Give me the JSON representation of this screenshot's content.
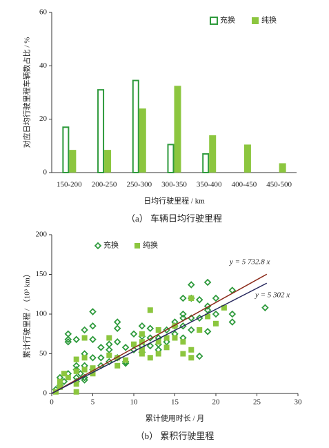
{
  "chart_data": [
    {
      "type": "bar",
      "categories": [
        "150-200",
        "200-250",
        "250-300",
        "300-350",
        "350-400",
        "400-450",
        "450-500"
      ],
      "series": [
        {
          "name": "充换",
          "color": "#2e9a3c",
          "style": "hollow",
          "values": [
            17,
            31,
            34.5,
            10.5,
            7,
            null,
            null
          ]
        },
        {
          "name": "纯换",
          "color": "#8cc63f",
          "style": "filled",
          "values": [
            8.5,
            8.5,
            24,
            32.5,
            14,
            10.5,
            3.5
          ]
        }
      ],
      "ylim": [
        0,
        60
      ],
      "yticks": [
        0,
        20,
        40,
        60
      ],
      "ylabel": "对应日均行驶里程车辆数占比 / %",
      "xlabel": "日均行驶里程 / km",
      "caption": "（a） 车辆日均行驶里程",
      "legend": "upper right",
      "grid": false
    },
    {
      "type": "scatter",
      "series": [
        {
          "name": "充换",
          "color": "#2e9a3c",
          "marker": "diamond",
          "x": [
            0.5,
            1,
            1,
            1.5,
            2,
            2,
            2,
            2,
            3,
            3,
            3,
            3,
            3,
            3.5,
            4,
            4,
            4,
            4,
            4,
            5,
            5,
            5,
            5,
            5,
            6,
            6,
            6,
            7,
            7,
            7,
            8,
            8,
            8,
            8,
            9,
            9,
            9,
            10,
            10,
            11,
            11,
            11,
            11,
            12,
            12,
            12,
            13,
            13,
            14,
            14,
            15,
            15,
            16,
            16,
            16,
            16,
            17,
            17,
            17,
            17,
            18,
            18,
            18,
            19,
            19,
            19,
            19,
            20,
            20,
            22,
            22,
            22,
            26,
            15,
            16,
            13
          ],
          "y": [
            5,
            10,
            20,
            15,
            25,
            68,
            75,
            65,
            68,
            30,
            35,
            20,
            15,
            25,
            80,
            50,
            35,
            20,
            17,
            103,
            85,
            68,
            45,
            30,
            58,
            45,
            35,
            62,
            55,
            40,
            90,
            82,
            65,
            45,
            58,
            40,
            38,
            75,
            55,
            85,
            72,
            60,
            52,
            82,
            70,
            60,
            70,
            62,
            80,
            65,
            85,
            75,
            120,
            100,
            95,
            85,
            137,
            120,
            95,
            80,
            118,
            95,
            47,
            140,
            110,
            105,
            78,
            120,
            100,
            130,
            100,
            90,
            108,
            90,
            70,
            55
          ]
        },
        {
          "name": "纯换",
          "color": "#8cc63f",
          "marker": "square",
          "x": [
            0.5,
            1,
            1,
            1.5,
            2,
            3,
            3,
            3,
            3,
            4,
            4,
            4,
            5,
            5,
            7,
            7,
            8,
            8,
            9,
            11,
            11,
            11,
            12,
            12,
            13,
            13,
            14,
            15,
            15,
            16,
            16,
            17,
            17,
            18,
            19,
            20,
            21,
            13,
            11,
            10,
            14,
            17
          ],
          "y": [
            2,
            8,
            15,
            25,
            20,
            2,
            12,
            28,
            43,
            70,
            45,
            30,
            25,
            32,
            70,
            48,
            35,
            45,
            42,
            75,
            65,
            55,
            105,
            45,
            80,
            50,
            70,
            85,
            70,
            65,
            50,
            120,
            45,
            80,
            97,
            88,
            108,
            65,
            50,
            62,
            58,
            55
          ]
        }
      ],
      "fit_lines": [
        {
          "label": "y = 5 732.8 x",
          "slope": 5.7328,
          "xrange": [
            0,
            26.2
          ],
          "color": "#8b2a1a"
        },
        {
          "label": "y = 5 302 x",
          "slope": 5.302,
          "xrange": [
            0,
            26.2
          ],
          "color": "#27285e"
        }
      ],
      "xlim": [
        0,
        30
      ],
      "xticks": [
        0,
        5,
        10,
        15,
        20,
        25,
        30
      ],
      "ylim": [
        0,
        200
      ],
      "yticks": [
        0,
        50,
        100,
        150,
        200
      ],
      "ylabel": "累计行驶里程 / （10³ km）",
      "xlabel": "累计使用时长 / 月",
      "caption": "（b） 累积行驶里程",
      "legend": "upper left",
      "grid": false
    }
  ]
}
